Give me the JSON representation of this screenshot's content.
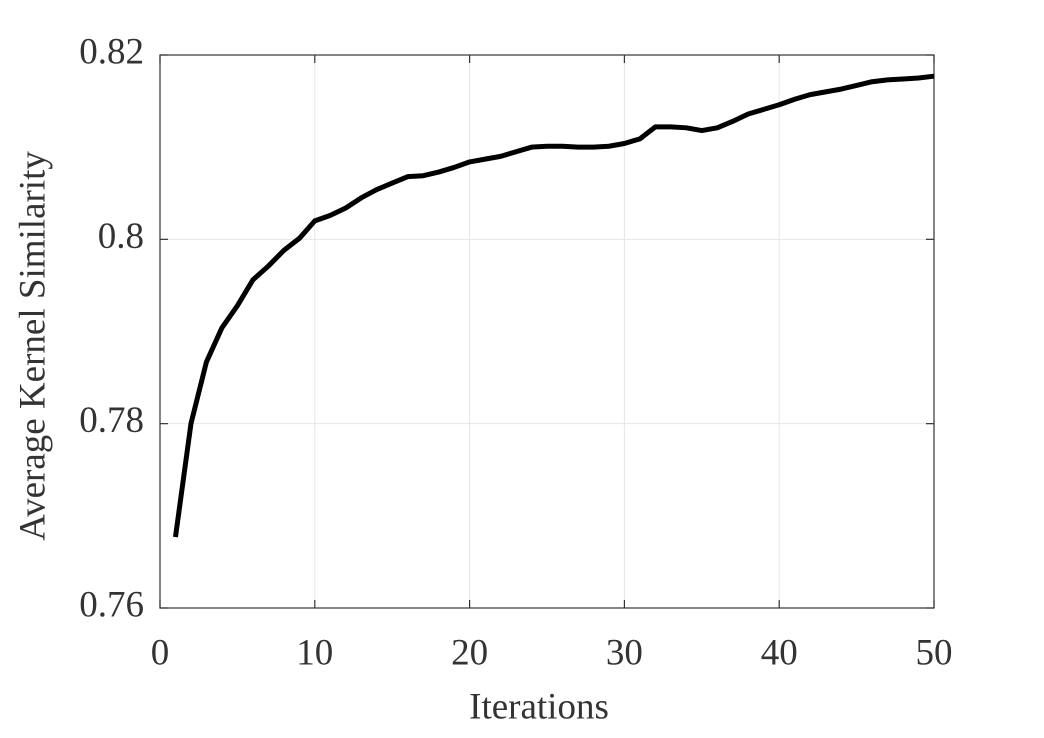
{
  "chart_data": {
    "type": "line",
    "x_label": "Iterations",
    "y_label": "Average Kernel Similarity",
    "x": [
      1,
      2,
      3,
      4,
      5,
      6,
      7,
      8,
      9,
      10,
      11,
      12,
      13,
      14,
      15,
      16,
      17,
      18,
      19,
      20,
      21,
      22,
      23,
      24,
      25,
      26,
      27,
      28,
      29,
      30,
      31,
      32,
      33,
      34,
      35,
      36,
      37,
      38,
      39,
      40,
      41,
      42,
      43,
      44,
      45,
      46,
      47,
      48,
      49,
      50
    ],
    "values": [
      0.7677,
      0.78,
      0.7867,
      0.7904,
      0.7928,
      0.7956,
      0.7971,
      0.7988,
      0.8001,
      0.802,
      0.8026,
      0.8034,
      0.8045,
      0.8054,
      0.8061,
      0.8068,
      0.8069,
      0.8073,
      0.8078,
      0.8084,
      0.8087,
      0.809,
      0.8095,
      0.81,
      0.8101,
      0.8101,
      0.81,
      0.81,
      0.8101,
      0.8104,
      0.8109,
      0.8122,
      0.8122,
      0.8121,
      0.8118,
      0.8121,
      0.8128,
      0.8136,
      0.8141,
      0.8146,
      0.8152,
      0.8157,
      0.816,
      0.8163,
      0.8167,
      0.8171,
      0.8173,
      0.8174,
      0.8175,
      0.8177
    ],
    "color": "#000000",
    "xlim": [
      0,
      50
    ],
    "xticks": [
      0,
      10,
      20,
      30,
      40,
      50
    ],
    "ylim": [
      0.76,
      0.82
    ],
    "yticks": [
      0.76,
      0.78,
      0.8,
      0.82
    ],
    "grid": true
  }
}
